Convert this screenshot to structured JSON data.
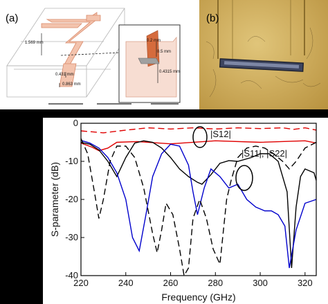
{
  "panel_a": {
    "label": "(a)",
    "dims": [
      "1.569 mm",
      "0.431 mm",
      "0.863 mm",
      "0.2 mm",
      "0.5 mm",
      "0.4315 mm"
    ]
  },
  "panel_b": {
    "label": "(b)"
  },
  "chart_data": {
    "type": "line",
    "xlabel": "Frequency (GHz)",
    "ylabel": "S-parameter (dB)",
    "xlim": [
      220,
      325
    ],
    "ylim": [
      -40,
      0
    ],
    "xticks": [
      220,
      240,
      260,
      280,
      300,
      320
    ],
    "yticks": [
      0,
      -10,
      -20,
      -30,
      -40
    ],
    "annotations": [
      {
        "text": "|S12|",
        "x": 279,
        "y": -2.5
      },
      {
        "text": "|S11|, |S22|",
        "x": 301,
        "y": -11
      }
    ],
    "series": [
      {
        "style": "dashed",
        "color": "#e00000",
        "x": [
          220,
          230,
          240,
          250,
          260,
          270,
          280,
          290,
          300,
          310,
          315,
          320,
          325
        ],
        "y": [
          -2,
          -2.5,
          -1.8,
          -1.2,
          -1.5,
          -1.2,
          -1.5,
          -1.2,
          -1.4,
          -1.2,
          -1.6,
          -1.2,
          -1.8
        ]
      },
      {
        "style": "solid",
        "color": "#e00000",
        "x": [
          220,
          225,
          228,
          232,
          236,
          245,
          260,
          280,
          300,
          320,
          325
        ],
        "y": [
          -5.2,
          -6.3,
          -7.2,
          -6.5,
          -5,
          -4.8,
          -5.4,
          -4.6,
          -5,
          -4.6,
          -5.2
        ]
      },
      {
        "style": "solid",
        "color": "#000000",
        "x": [
          220,
          224,
          228,
          232,
          236,
          240,
          244,
          248,
          252,
          256,
          260,
          264,
          268,
          272,
          274,
          278,
          282,
          286,
          290,
          296,
          300,
          304,
          308,
          312,
          314,
          316,
          318,
          320,
          324,
          325
        ],
        "y": [
          -5,
          -5.5,
          -7,
          -10,
          -14,
          -9,
          -5.2,
          -4.6,
          -5,
          -6.5,
          -9,
          -12,
          -14,
          -15.5,
          -16,
          -13.5,
          -10.5,
          -9.8,
          -10,
          -9,
          -8,
          -8,
          -10,
          -18,
          -38,
          -22,
          -14,
          -12,
          -13,
          -15
        ]
      },
      {
        "style": "solid",
        "color": "#0000cc",
        "x": [
          220,
          224,
          228,
          232,
          236,
          240,
          243,
          246,
          249,
          252,
          256,
          260,
          264,
          268,
          270,
          272,
          275,
          278,
          282,
          286,
          290,
          294,
          298,
          302,
          305,
          308,
          311,
          313,
          316,
          320,
          325
        ],
        "y": [
          -4.5,
          -5.2,
          -6.5,
          -9,
          -13,
          -20,
          -30,
          -33.5,
          -24,
          -14,
          -8,
          -5.5,
          -6,
          -11,
          -18,
          -24,
          -17,
          -12,
          -14,
          -17,
          -16,
          -20,
          -22,
          -23,
          -23,
          -24,
          -27,
          -38,
          -28,
          -21,
          -20
        ]
      },
      {
        "style": "dashed",
        "color": "#000000",
        "x": [
          220,
          223,
          226,
          228,
          230,
          233,
          236,
          240,
          244,
          248,
          252,
          254,
          256,
          258,
          261,
          264,
          266,
          268,
          270,
          273,
          276,
          279,
          282,
          285,
          287,
          290,
          294,
          298,
          302,
          306,
          310,
          313,
          316,
          320,
          325
        ],
        "y": [
          -4,
          -8,
          -18,
          -25,
          -20,
          -10,
          -6,
          -6,
          -9,
          -17,
          -29,
          -34,
          -28,
          -21,
          -24,
          -33,
          -40,
          -38,
          -25,
          -20,
          -25,
          -33,
          -37,
          -20,
          -15,
          -9,
          -6.5,
          -6,
          -6.5,
          -8,
          -10,
          -12,
          -10,
          -6.5,
          -5
        ]
      }
    ]
  }
}
